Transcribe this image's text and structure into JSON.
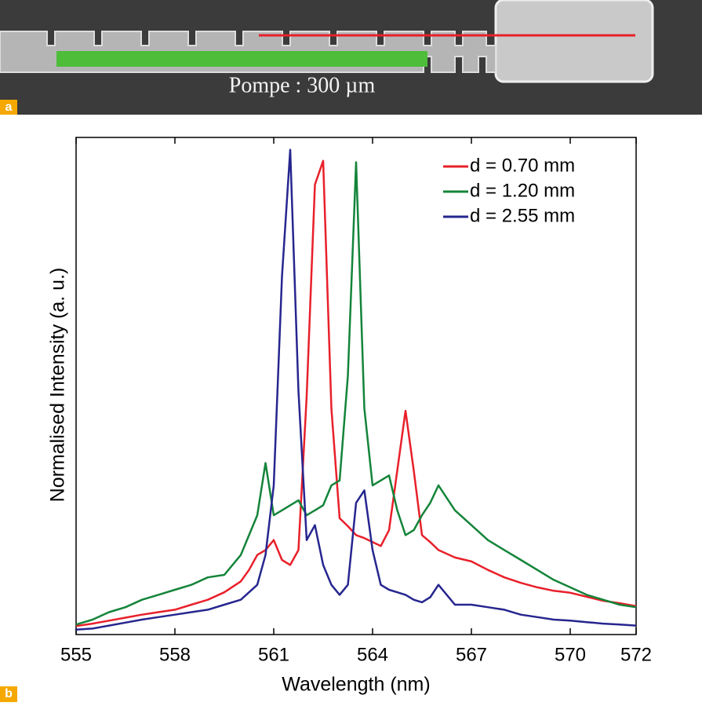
{
  "panel_a": {
    "label": "a",
    "caption": "Pompe : 300 µm"
  },
  "panel_b_label": "b",
  "chart_data": {
    "type": "line",
    "y_label": "Normalised Intensity (a. u.)",
    "x_label": "Wavelength (nm)",
    "x": [
      555,
      555.5,
      556,
      556.5,
      557,
      557.5,
      558,
      558.5,
      559,
      559.5,
      560,
      560.25,
      560.5,
      560.75,
      561,
      561.25,
      561.5,
      561.75,
      562,
      562.25,
      562.5,
      562.75,
      563,
      563.25,
      563.5,
      563.75,
      564,
      564.25,
      564.5,
      564.75,
      565,
      565.25,
      565.5,
      565.75,
      566,
      566.5,
      567,
      567.5,
      568,
      568.5,
      569,
      569.5,
      570,
      570.5,
      571,
      571.5,
      572
    ],
    "series": [
      {
        "name": "d = 0.70 mm",
        "color": "#e8202a",
        "values": [
          0.017,
          0.022,
          0.028,
          0.034,
          0.04,
          0.045,
          0.05,
          0.06,
          0.07,
          0.085,
          0.107,
          0.13,
          0.16,
          0.17,
          0.19,
          0.15,
          0.14,
          0.17,
          0.48,
          0.905,
          0.953,
          0.455,
          0.234,
          0.218,
          0.2,
          0.194,
          0.186,
          0.178,
          0.21,
          0.33,
          0.45,
          0.33,
          0.2,
          0.186,
          0.17,
          0.155,
          0.147,
          0.13,
          0.115,
          0.104,
          0.095,
          0.088,
          0.084,
          0.076,
          0.068,
          0.063,
          0.057
        ]
      },
      {
        "name": "d = 1.20 mm",
        "color": "#14843a",
        "values": [
          0.02,
          0.03,
          0.045,
          0.055,
          0.07,
          0.08,
          0.09,
          0.1,
          0.115,
          0.12,
          0.16,
          0.2,
          0.24,
          0.345,
          0.24,
          0.25,
          0.26,
          0.27,
          0.24,
          0.25,
          0.26,
          0.3,
          0.31,
          0.52,
          0.95,
          0.455,
          0.3,
          0.31,
          0.32,
          0.25,
          0.2,
          0.21,
          0.24,
          0.265,
          0.3,
          0.25,
          0.22,
          0.19,
          0.17,
          0.15,
          0.13,
          0.11,
          0.095,
          0.08,
          0.07,
          0.06,
          0.055
        ]
      },
      {
        "name": "d = 2.55 mm",
        "color": "#26268f",
        "values": [
          0.01,
          0.012,
          0.018,
          0.024,
          0.03,
          0.035,
          0.04,
          0.045,
          0.05,
          0.06,
          0.07,
          0.085,
          0.1,
          0.16,
          0.3,
          0.72,
          0.975,
          0.49,
          0.19,
          0.22,
          0.14,
          0.1,
          0.08,
          0.1,
          0.265,
          0.29,
          0.17,
          0.1,
          0.09,
          0.085,
          0.08,
          0.07,
          0.065,
          0.075,
          0.1,
          0.06,
          0.06,
          0.055,
          0.05,
          0.04,
          0.035,
          0.03,
          0.028,
          0.025,
          0.022,
          0.02,
          0.018
        ]
      }
    ],
    "xlim": [
      555,
      572
    ],
    "xticks": [
      555,
      558,
      561,
      564,
      567,
      570,
      572
    ],
    "ylim": [
      0,
      1
    ],
    "legend": "upper right"
  }
}
